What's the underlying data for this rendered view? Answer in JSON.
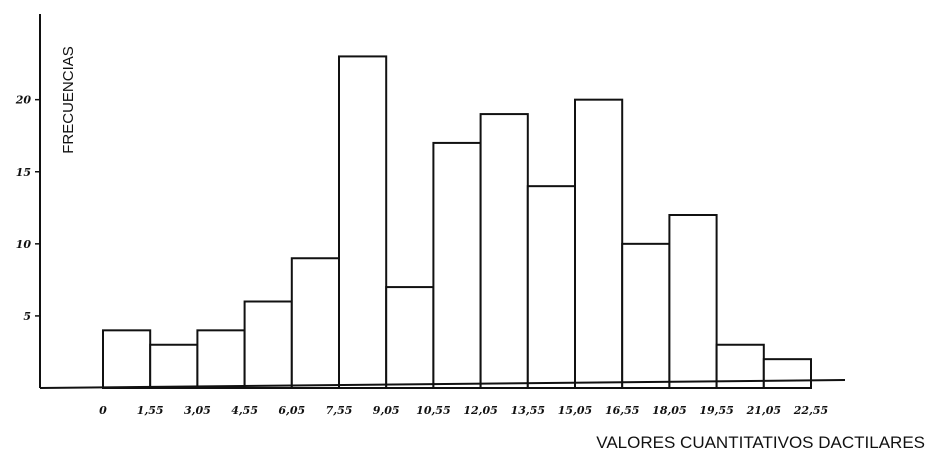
{
  "chart_data": {
    "type": "bar",
    "ylabel": "FRECUENCIAS",
    "xlabel": "VALORES CUANTITATIVOS DACTILARES",
    "x_ticks": [
      "0",
      "1,55",
      "3,05",
      "4,55",
      "6,05",
      "7,55",
      "9,05",
      "10,55",
      "12,05",
      "13,55",
      "15,05",
      "16,55",
      "18,05",
      "19,55",
      "21,05",
      "22,55"
    ],
    "y_ticks": [
      "5",
      "10",
      "15",
      "20"
    ],
    "y_tick_values": [
      5,
      10,
      15,
      20
    ],
    "values": [
      4,
      3,
      4,
      6,
      9,
      23,
      7,
      17,
      19,
      14,
      20,
      10,
      12,
      3,
      2
    ],
    "ylim": [
      0,
      24
    ],
    "grid": false
  }
}
